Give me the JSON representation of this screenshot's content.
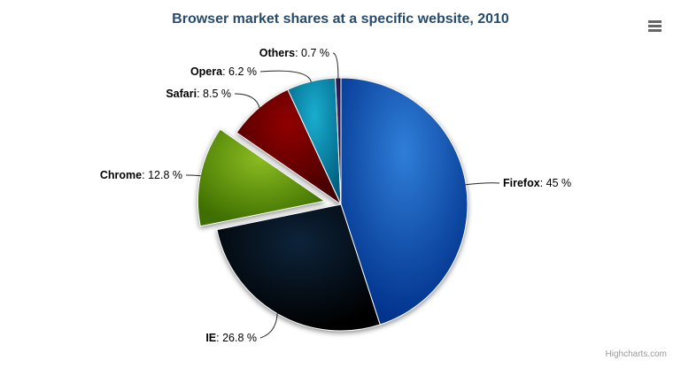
{
  "header": {
    "title_color": "#274b6d",
    "menu_icon_color": "#666666"
  },
  "credits": {
    "label": "Highcharts.com",
    "color": "#999999"
  },
  "chart_data": {
    "type": "pie",
    "title": "Browser market shares at a specific website, 2010",
    "legend": false,
    "grid": false,
    "label_format": "{name}: {percentage} %",
    "label_color": "#000000",
    "connector_color": "#000000",
    "slice_border_color": "#ffffff",
    "start_angle_deg": 0,
    "direction": "clockwise",
    "slices": [
      {
        "name": "Firefox",
        "percentage": 45,
        "label": "45 %",
        "color": "#2f7ed8",
        "sliced": false
      },
      {
        "name": "IE",
        "percentage": 26.8,
        "label": "26.8 %",
        "color": "#0d233a",
        "sliced": false
      },
      {
        "name": "Chrome",
        "percentage": 12.8,
        "label": "12.8 %",
        "color": "#8bbc21",
        "sliced": true
      },
      {
        "name": "Safari",
        "percentage": 8.5,
        "label": "8.5 %",
        "color": "#910000",
        "sliced": false
      },
      {
        "name": "Opera",
        "percentage": 6.2,
        "label": "6.2 %",
        "color": "#1aadce",
        "sliced": false
      },
      {
        "name": "Others",
        "percentage": 0.7,
        "label": "0.7 %",
        "color": "#492970",
        "sliced": false
      }
    ]
  }
}
